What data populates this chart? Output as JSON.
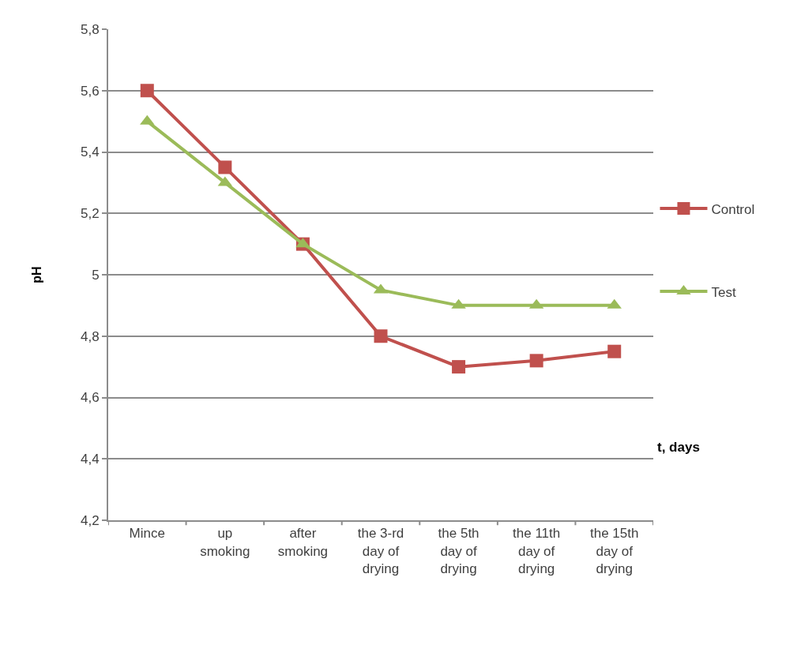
{
  "chart_data": {
    "type": "line",
    "ylabel": "pH",
    "xlabel": "t, days",
    "categories": [
      "Mince",
      "up smoking",
      "after smoking",
      "the 3-rd day of drying",
      "the 5th day of drying",
      "the 11th day of drying",
      "the 15th day of drying"
    ],
    "series": [
      {
        "name": "Control",
        "color": "#c0504d",
        "marker": "square",
        "values": [
          5.6,
          5.35,
          5.1,
          4.8,
          4.7,
          4.72,
          4.75
        ]
      },
      {
        "name": "Test",
        "color": "#9bbb59",
        "marker": "triangle",
        "values": [
          5.5,
          5.3,
          5.1,
          4.95,
          4.9,
          4.9,
          4.9
        ]
      }
    ],
    "ylim": [
      4.2,
      5.8
    ],
    "yticks": [
      {
        "value": 4.2,
        "label": "4,2"
      },
      {
        "value": 4.4,
        "label": "4,4"
      },
      {
        "value": 4.6,
        "label": "4,6"
      },
      {
        "value": 4.8,
        "label": "4,8"
      },
      5,
      {
        "value": 5.2,
        "label": "5,2"
      },
      {
        "value": 5.4,
        "label": "5,4"
      },
      {
        "value": 5.6,
        "label": "5,6"
      },
      {
        "value": 5.8,
        "label": "5,8"
      }
    ],
    "grid": "y",
    "legend": "right",
    "line_style": "solid"
  }
}
